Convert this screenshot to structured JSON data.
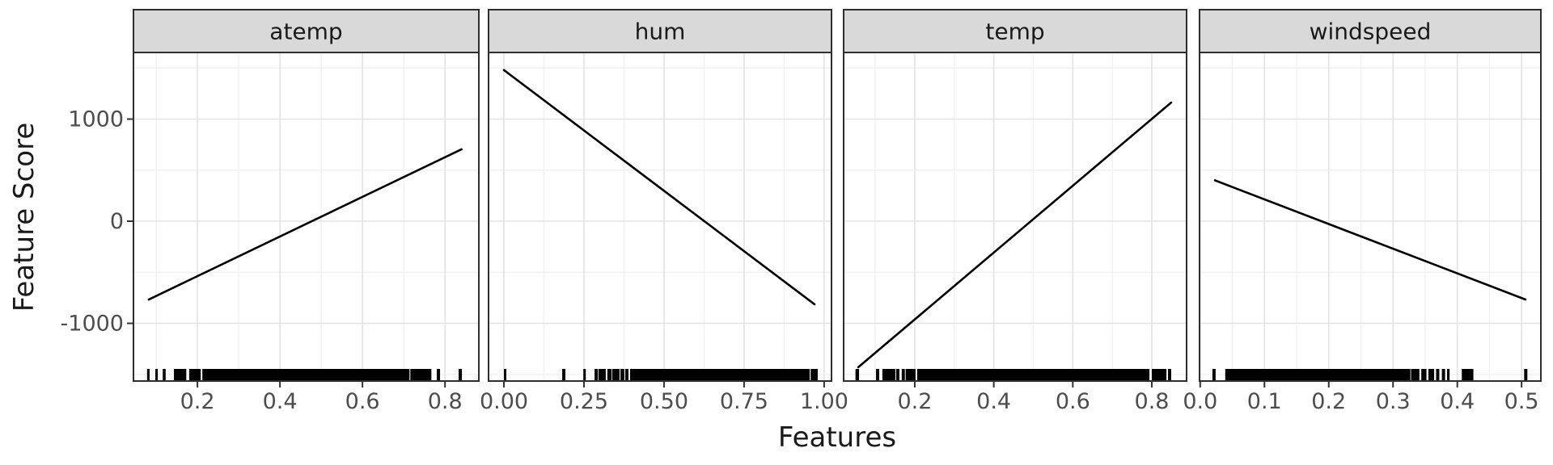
{
  "figure": {
    "background": "#FFFFFF",
    "strip_fill": "#D9D9D9",
    "strip_border": "#2E2E2E",
    "panel_border": "#2E2E2E",
    "panel_fill": "#FFFFFF",
    "grid_major": "#E3E3E3",
    "grid_minor": "#F1F1F1",
    "line_color": "#000000",
    "rug_color": "#000000",
    "tick_color": "#333333",
    "tick_label_color": "#4D4D4D",
    "strip_text_color": "#1A1A1A",
    "axis_title_color": "#1A1A1A"
  },
  "chart_data": {
    "type": "line",
    "title": "",
    "xlabel": "Features",
    "ylabel": "Feature Score",
    "grid": true,
    "legend": "none",
    "ylim": [
      -1565,
      1650
    ],
    "yticks": [
      1000,
      0,
      -1000
    ],
    "ytick_labels": [
      "1000",
      "0",
      "-1000"
    ],
    "yticks_minor": [
      1500,
      500,
      -500,
      -1500
    ],
    "facets": [
      {
        "label": "atemp",
        "xlim": [
          0.045,
          0.882
        ],
        "xticks": [
          0.2,
          0.4,
          0.6,
          0.8
        ],
        "xtick_labels": [
          "0.2",
          "0.4",
          "0.6",
          "0.8"
        ],
        "xticks_minor": [
          0.1,
          0.3,
          0.5,
          0.7
        ],
        "line": {
          "x": [
            0.082,
            0.84
          ],
          "y": [
            -767,
            704
          ]
        },
        "rug_intervals": [
          [
            0.078,
            0.084
          ],
          [
            0.098,
            0.104
          ],
          [
            0.116,
            0.123
          ],
          [
            0.143,
            0.173
          ],
          [
            0.18,
            0.208
          ],
          [
            0.212,
            0.714
          ],
          [
            0.716,
            0.767
          ],
          [
            0.78,
            0.788
          ],
          [
            0.833,
            0.841
          ]
        ]
      },
      {
        "label": "hum",
        "xlim": [
          -0.048,
          1.023
        ],
        "xticks": [
          0,
          0.25,
          0.5,
          0.75,
          1.0
        ],
        "xtick_labels": [
          "0.00",
          "0.25",
          "0.50",
          "0.75",
          "1.00"
        ],
        "xticks_minor": [
          0.125,
          0.375,
          0.625,
          0.875
        ],
        "line": {
          "x": [
            0.0,
            0.97
          ],
          "y": [
            1480,
            -814
          ]
        },
        "rug_intervals": [
          [
            0.0,
            0.004
          ],
          [
            0.182,
            0.192
          ],
          [
            0.248,
            0.255
          ],
          [
            0.283,
            0.293
          ],
          [
            0.295,
            0.318
          ],
          [
            0.323,
            0.336
          ],
          [
            0.338,
            0.361
          ],
          [
            0.364,
            0.376
          ],
          [
            0.379,
            0.389
          ],
          [
            0.394,
            0.955
          ],
          [
            0.958,
            0.98
          ]
        ]
      },
      {
        "label": "temp",
        "xlim": [
          0.02,
          0.888
        ],
        "xticks": [
          0.2,
          0.4,
          0.6,
          0.8
        ],
        "xtick_labels": [
          "0.2",
          "0.4",
          "0.6",
          "0.8"
        ],
        "xticks_minor": [
          0.1,
          0.3,
          0.5,
          0.7
        ],
        "line": {
          "x": [
            0.057,
            0.849
          ],
          "y": [
            -1430,
            1162
          ]
        },
        "rug_intervals": [
          [
            0.05,
            0.059
          ],
          [
            0.102,
            0.11
          ],
          [
            0.118,
            0.151
          ],
          [
            0.153,
            0.161
          ],
          [
            0.167,
            0.175
          ],
          [
            0.177,
            0.202
          ],
          [
            0.206,
            0.794
          ],
          [
            0.8,
            0.837
          ],
          [
            0.841,
            0.849
          ]
        ]
      },
      {
        "label": "windspeed",
        "xlim": [
          -0.001,
          0.53
        ],
        "xticks": [
          0,
          0.1,
          0.2,
          0.3,
          0.4,
          0.5
        ],
        "xtick_labels": [
          "0.0",
          "0.1",
          "0.2",
          "0.3",
          "0.4",
          "0.5"
        ],
        "xticks_minor": [
          0.05,
          0.15,
          0.25,
          0.35,
          0.45
        ],
        "line": {
          "x": [
            0.023,
            0.506
          ],
          "y": [
            400,
            -767
          ]
        },
        "rug_intervals": [
          [
            0.019,
            0.024
          ],
          [
            0.039,
            0.327
          ],
          [
            0.328,
            0.341
          ],
          [
            0.344,
            0.352
          ],
          [
            0.355,
            0.364
          ],
          [
            0.367,
            0.372
          ],
          [
            0.376,
            0.381
          ],
          [
            0.384,
            0.388
          ],
          [
            0.407,
            0.425
          ],
          [
            0.504,
            0.509
          ]
        ]
      }
    ]
  }
}
